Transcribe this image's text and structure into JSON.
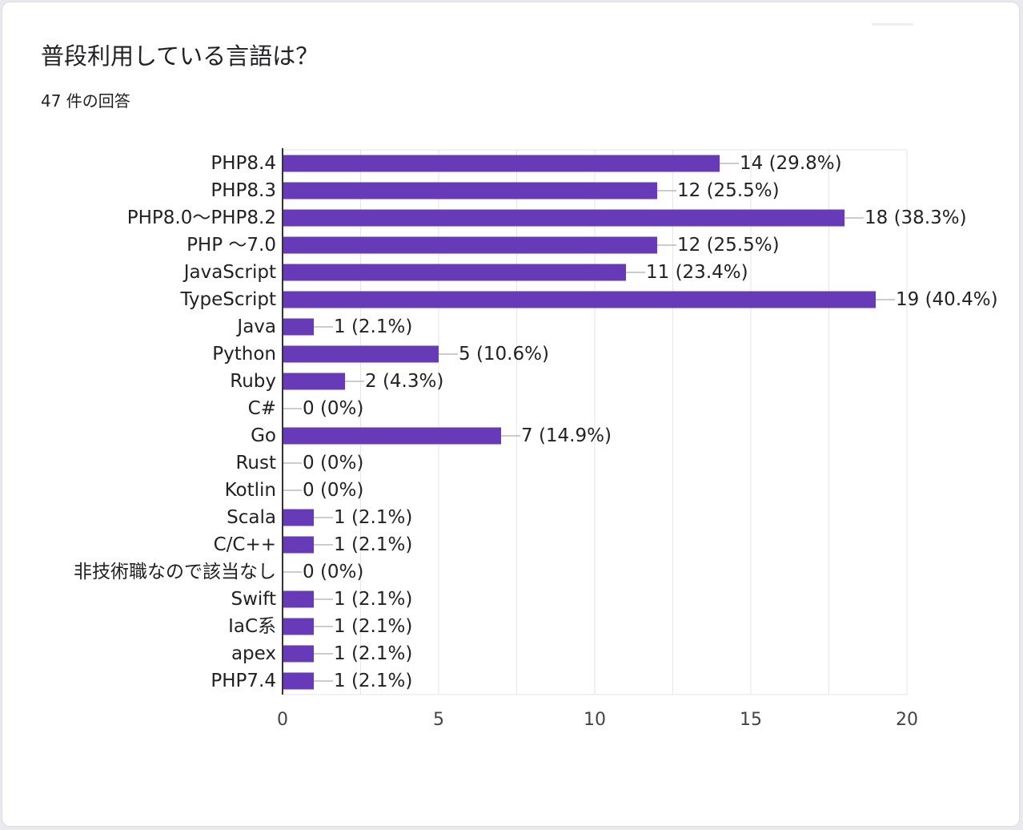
{
  "question": {
    "title": "普段利用している言語は？",
    "response_count": "47 件の回答"
  },
  "colors": {
    "bar": "#673ab7",
    "grid": "#e6e6e6",
    "axis": "#333333",
    "leader": "#999999",
    "text": "#222222",
    "tick_text": "#444444"
  },
  "chart_data": {
    "type": "bar",
    "orientation": "horizontal",
    "title": "普段利用している言語は？",
    "categories": [
      "PHP8.4",
      "PHP8.3",
      "PHP8.0～PHP8.2",
      "PHP ～7.0",
      "JavaScript",
      "TypeScript",
      "Java",
      "Python",
      "Ruby",
      "C#",
      "Go",
      "Rust",
      "Kotlin",
      "Scala",
      "C/C++",
      "非技術職なので該当なし",
      "Swift",
      "IaC系",
      "apex",
      "PHP7.4"
    ],
    "values": [
      14,
      12,
      18,
      12,
      11,
      19,
      1,
      5,
      2,
      0,
      7,
      0,
      0,
      1,
      1,
      0,
      1,
      1,
      1,
      1
    ],
    "data_labels": [
      "14 (29.8%)",
      "12 (25.5%)",
      "18 (38.3%)",
      "12 (25.5%)",
      "11 (23.4%)",
      "19 (40.4%)",
      "1 (2.1%)",
      "5 (10.6%)",
      "2 (4.3%)",
      "0 (0%)",
      "7 (14.9%)",
      "0 (0%)",
      "0 (0%)",
      "1 (2.1%)",
      "1 (2.1%)",
      "0 (0%)",
      "1 (2.1%)",
      "1 (2.1%)",
      "1 (2.1%)",
      "1 (2.1%)"
    ],
    "xlim": [
      0,
      20
    ],
    "xticks": [
      0,
      5,
      10,
      15,
      20
    ],
    "xlabel": "",
    "ylabel": "",
    "grid": true,
    "legend": "none"
  }
}
